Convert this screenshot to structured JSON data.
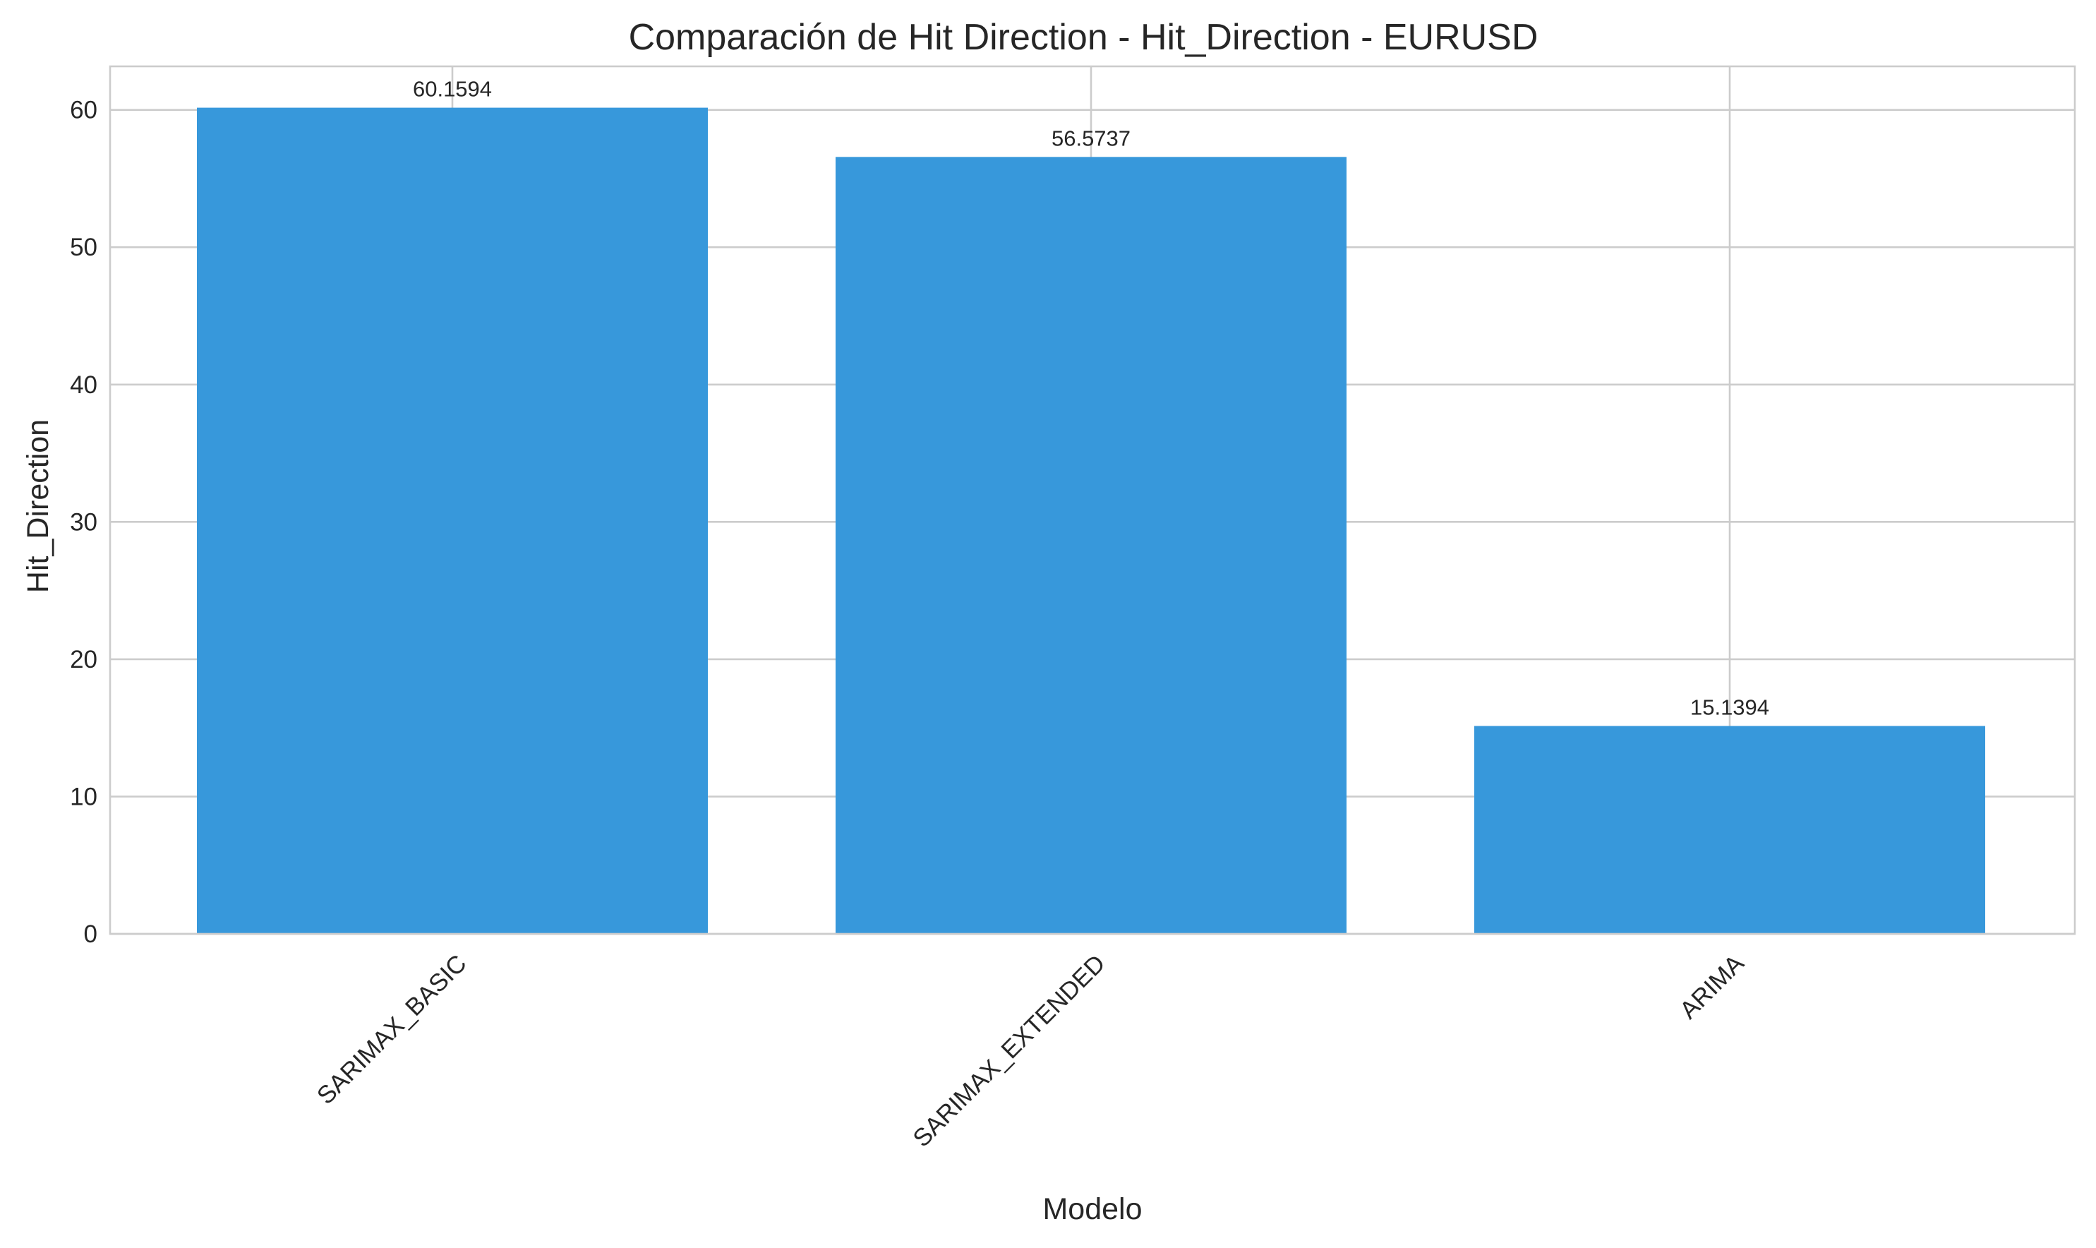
{
  "chart_data": {
    "type": "bar",
    "title": "Comparación de Hit Direction - Hit_Direction - EURUSD",
    "xlabel": "Modelo",
    "ylabel": "Hit_Direction",
    "categories": [
      "SARIMAX_BASIC",
      "SARIMAX_EXTENDED",
      "ARIMA"
    ],
    "values": [
      60.1594,
      56.5737,
      15.1394
    ],
    "data_labels": [
      "60.1594",
      "56.5737",
      "15.1394"
    ],
    "ylim": [
      0,
      63.17
    ],
    "yticks": [
      0,
      10,
      20,
      30,
      40,
      50,
      60
    ],
    "ytick_labels": [
      "0",
      "10",
      "20",
      "30",
      "40",
      "50",
      "60"
    ],
    "grid": true,
    "bar_color": "#3798db",
    "x_tick_rotation": "45deg"
  }
}
